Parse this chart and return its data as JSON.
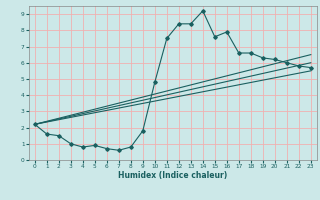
{
  "xlabel": "Humidex (Indice chaleur)",
  "bg_color": "#cce8e8",
  "grid_color": "#f0b0b0",
  "line_color": "#1a6060",
  "xlim": [
    -0.5,
    23.5
  ],
  "ylim": [
    0,
    9.5
  ],
  "xticks": [
    0,
    1,
    2,
    3,
    4,
    5,
    6,
    7,
    8,
    9,
    10,
    11,
    12,
    13,
    14,
    15,
    16,
    17,
    18,
    19,
    20,
    21,
    22,
    23
  ],
  "yticks": [
    0,
    1,
    2,
    3,
    4,
    5,
    6,
    7,
    8,
    9
  ],
  "main_line_x": [
    0,
    1,
    2,
    3,
    4,
    5,
    6,
    7,
    8,
    9,
    10,
    11,
    12,
    13,
    14,
    15,
    16,
    17,
    18,
    19,
    20,
    21,
    22,
    23
  ],
  "main_line_y": [
    2.2,
    1.6,
    1.5,
    1.0,
    0.8,
    0.9,
    0.7,
    0.6,
    0.8,
    1.8,
    4.8,
    7.5,
    8.4,
    8.4,
    9.2,
    7.6,
    7.9,
    6.6,
    6.6,
    6.3,
    6.2,
    6.0,
    5.8,
    5.7
  ],
  "line2_x": [
    0,
    23
  ],
  "line2_y": [
    2.2,
    6.5
  ],
  "line3_x": [
    0,
    23
  ],
  "line3_y": [
    2.2,
    6.0
  ],
  "line4_x": [
    0,
    23
  ],
  "line4_y": [
    2.2,
    5.5
  ]
}
